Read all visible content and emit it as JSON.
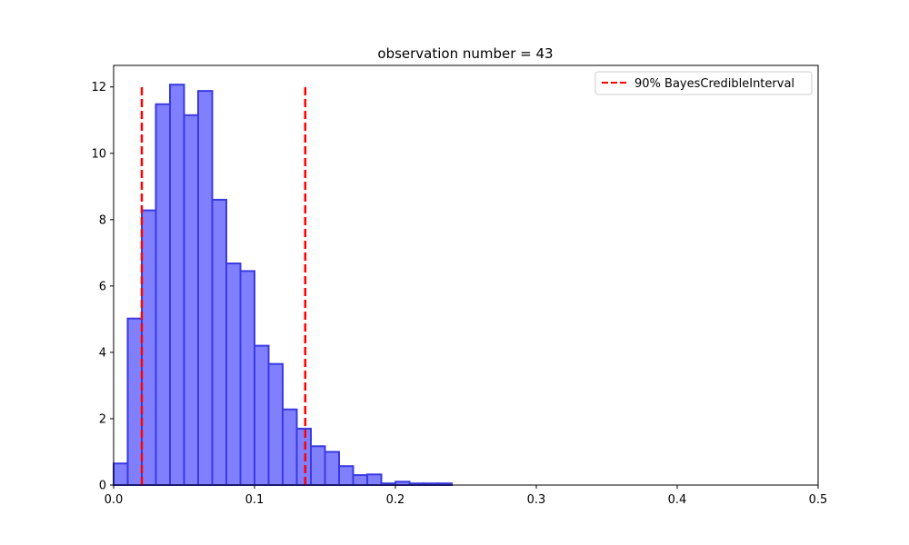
{
  "chart_data": {
    "type": "bar",
    "title": "observation number = 43",
    "xlabel": "",
    "ylabel": "",
    "xlim": [
      0.0,
      0.5
    ],
    "ylim": [
      0,
      12.65
    ],
    "xticks": [
      0.0,
      0.1,
      0.2,
      0.3,
      0.4,
      0.5
    ],
    "xtick_labels": [
      "0.0",
      "0.1",
      "0.2",
      "0.3",
      "0.4",
      "0.5"
    ],
    "yticks": [
      0,
      2,
      4,
      6,
      8,
      10,
      12
    ],
    "ytick_labels": [
      "0",
      "2",
      "4",
      "6",
      "8",
      "10",
      "12"
    ],
    "grid": false,
    "bin_width": 0.01,
    "bin_starts": [
      0.0,
      0.01,
      0.02,
      0.03,
      0.04,
      0.05,
      0.06,
      0.07,
      0.08,
      0.09,
      0.1,
      0.11,
      0.12,
      0.13,
      0.14,
      0.15,
      0.16,
      0.17,
      0.18,
      0.19,
      0.2,
      0.21,
      0.22,
      0.23
    ],
    "values": [
      0.65,
      5.02,
      8.28,
      11.48,
      12.07,
      11.15,
      11.88,
      8.6,
      6.68,
      6.45,
      4.2,
      3.65,
      2.28,
      1.7,
      1.17,
      1.0,
      0.57,
      0.3,
      0.32,
      0.05,
      0.1,
      0.05,
      0.05,
      0.05
    ],
    "bar_face_color": "#8080ff",
    "bar_edge_color": "#3a3ae0",
    "credible_interval": {
      "label": "90% BayesCredibleInterval",
      "lower": 0.02,
      "upper": 0.136,
      "height": 12,
      "color": "#ff0000",
      "style": "dashed"
    },
    "legend": {
      "position": "top-right",
      "entries": [
        "90% BayesCredibleInterval"
      ]
    }
  }
}
